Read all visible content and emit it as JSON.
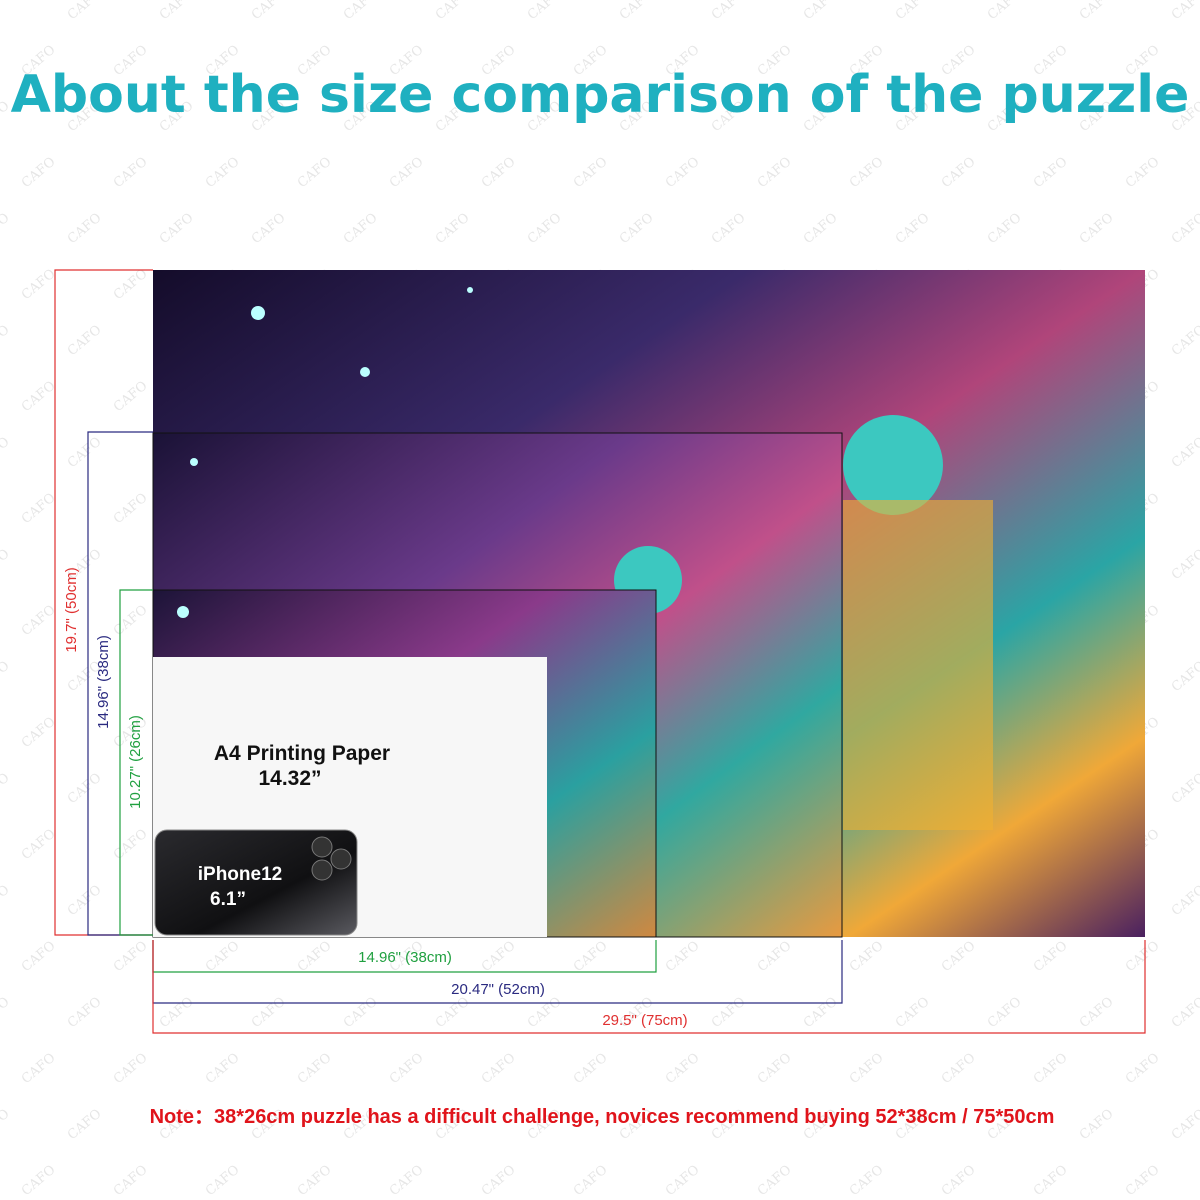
{
  "watermark": "CAFO",
  "title": "About the size comparison of the puzzle",
  "heights": [
    "19.7\" (50cm)",
    "14.96\" (38cm)",
    "10.27\" (26cm)"
  ],
  "widths": [
    "14.96\" (38cm)",
    "20.47\" (52cm)",
    "29.5\" (75cm)"
  ],
  "a4": {
    "name": "A4 Printing Paper",
    "size": "14.32”"
  },
  "iphone": {
    "name": "iPhone12",
    "size": "6.1”"
  },
  "note": "Note：38*26cm puzzle has a difficult challenge, novices recommend buying 52*38cm / 75*50cm"
}
